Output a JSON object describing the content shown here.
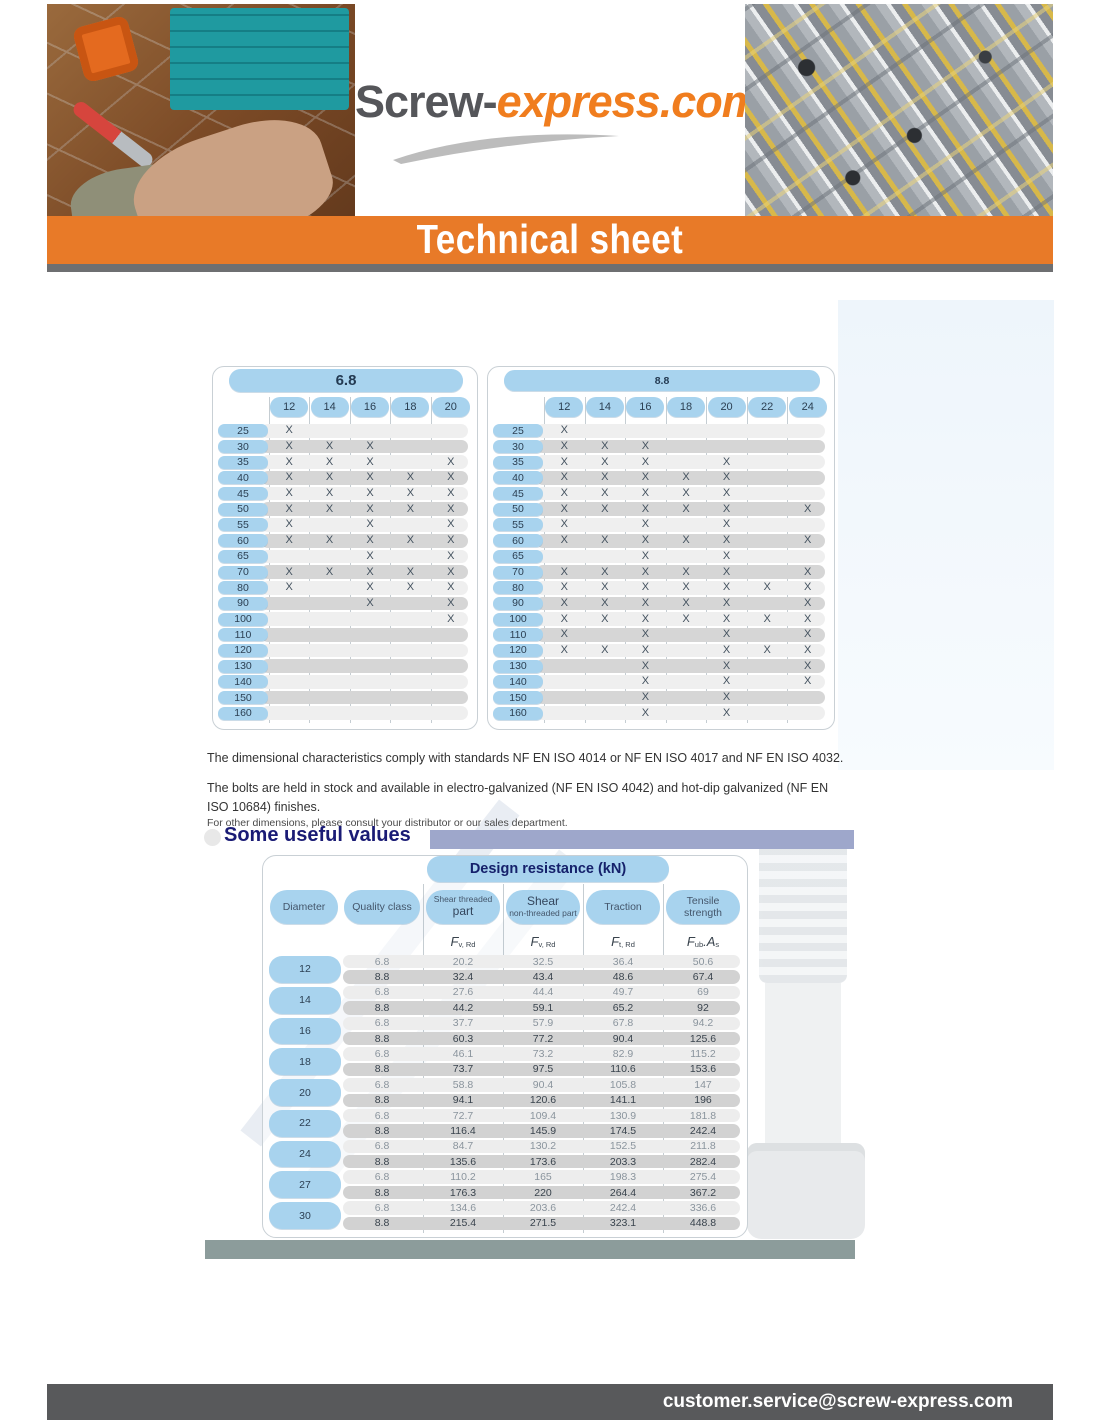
{
  "header": {
    "logo_prefix": "Screw-",
    "logo_suffix": "express.com",
    "banner_title": "Technical sheet"
  },
  "mark_glyph": "X",
  "availability_tables": [
    {
      "title": "6.8",
      "columns": [
        "12",
        "14",
        "16",
        "18",
        "20"
      ],
      "rows": [
        {
          "length": "25",
          "marks": [
            1,
            0,
            0,
            0,
            0
          ]
        },
        {
          "length": "30",
          "marks": [
            1,
            1,
            1,
            0,
            0
          ]
        },
        {
          "length": "35",
          "marks": [
            1,
            1,
            1,
            0,
            1
          ]
        },
        {
          "length": "40",
          "marks": [
            1,
            1,
            1,
            1,
            1
          ]
        },
        {
          "length": "45",
          "marks": [
            1,
            1,
            1,
            1,
            1
          ]
        },
        {
          "length": "50",
          "marks": [
            1,
            1,
            1,
            1,
            1
          ]
        },
        {
          "length": "55",
          "marks": [
            1,
            0,
            1,
            0,
            1
          ]
        },
        {
          "length": "60",
          "marks": [
            1,
            1,
            1,
            1,
            1
          ]
        },
        {
          "length": "65",
          "marks": [
            0,
            0,
            1,
            0,
            1
          ]
        },
        {
          "length": "70",
          "marks": [
            1,
            1,
            1,
            1,
            1
          ]
        },
        {
          "length": "80",
          "marks": [
            1,
            0,
            1,
            1,
            1
          ]
        },
        {
          "length": "90",
          "marks": [
            0,
            0,
            1,
            0,
            1
          ]
        },
        {
          "length": "100",
          "marks": [
            0,
            0,
            0,
            0,
            1
          ]
        },
        {
          "length": "110",
          "marks": [
            0,
            0,
            0,
            0,
            0
          ]
        },
        {
          "length": "120",
          "marks": [
            0,
            0,
            0,
            0,
            0
          ]
        },
        {
          "length": "130",
          "marks": [
            0,
            0,
            0,
            0,
            0
          ]
        },
        {
          "length": "140",
          "marks": [
            0,
            0,
            0,
            0,
            0
          ]
        },
        {
          "length": "150",
          "marks": [
            0,
            0,
            0,
            0,
            0
          ]
        },
        {
          "length": "160",
          "marks": [
            0,
            0,
            0,
            0,
            0
          ]
        }
      ]
    },
    {
      "title": "8.8",
      "columns": [
        "12",
        "14",
        "16",
        "18",
        "20",
        "22",
        "24"
      ],
      "rows": [
        {
          "length": "25",
          "marks": [
            1,
            0,
            0,
            0,
            0,
            0,
            0
          ]
        },
        {
          "length": "30",
          "marks": [
            1,
            1,
            1,
            0,
            0,
            0,
            0
          ]
        },
        {
          "length": "35",
          "marks": [
            1,
            1,
            1,
            0,
            1,
            0,
            0
          ]
        },
        {
          "length": "40",
          "marks": [
            1,
            1,
            1,
            1,
            1,
            0,
            0
          ]
        },
        {
          "length": "45",
          "marks": [
            1,
            1,
            1,
            1,
            1,
            0,
            0
          ]
        },
        {
          "length": "50",
          "marks": [
            1,
            1,
            1,
            1,
            1,
            0,
            1
          ]
        },
        {
          "length": "55",
          "marks": [
            1,
            0,
            1,
            0,
            1,
            0,
            0
          ]
        },
        {
          "length": "60",
          "marks": [
            1,
            1,
            1,
            1,
            1,
            0,
            1
          ]
        },
        {
          "length": "65",
          "marks": [
            0,
            0,
            1,
            0,
            1,
            0,
            0
          ]
        },
        {
          "length": "70",
          "marks": [
            1,
            1,
            1,
            1,
            1,
            0,
            1
          ]
        },
        {
          "length": "80",
          "marks": [
            1,
            1,
            1,
            1,
            1,
            1,
            1
          ]
        },
        {
          "length": "90",
          "marks": [
            1,
            1,
            1,
            1,
            1,
            0,
            1
          ]
        },
        {
          "length": "100",
          "marks": [
            1,
            1,
            1,
            1,
            1,
            1,
            1
          ]
        },
        {
          "length": "110",
          "marks": [
            1,
            0,
            1,
            0,
            1,
            0,
            1
          ]
        },
        {
          "length": "120",
          "marks": [
            1,
            1,
            1,
            0,
            1,
            1,
            1
          ]
        },
        {
          "length": "130",
          "marks": [
            0,
            0,
            1,
            0,
            1,
            0,
            1
          ]
        },
        {
          "length": "140",
          "marks": [
            0,
            0,
            1,
            0,
            1,
            0,
            1
          ]
        },
        {
          "length": "150",
          "marks": [
            0,
            0,
            1,
            0,
            1,
            0,
            0
          ]
        },
        {
          "length": "160",
          "marks": [
            0,
            0,
            1,
            0,
            1,
            0,
            0
          ]
        }
      ]
    }
  ],
  "notes": {
    "standards": "The dimensional characteristics comply with standards NF EN ISO 4014 or NF EN ISO 4017 and NF EN ISO 4032.",
    "stock_line1": "The bolts are held in stock and available in electro-galvanized (NF EN ISO 4042) and hot-dip galvanized (NF EN",
    "stock_line2": "ISO 10684) finishes.",
    "small_print": "For other dimensions, please consult your distributor or our sales department."
  },
  "useful_values": {
    "heading": "Some useful values"
  },
  "design_table": {
    "title": "Design resistance (kN)",
    "headers": {
      "diameter": "Diameter",
      "quality": "Quality class",
      "shear_threaded": [
        "Shear threaded",
        "part"
      ],
      "shear_plain": [
        "Shear",
        "non-threaded part"
      ],
      "traction": "Traction",
      "tensile": [
        "Tensile",
        "strength"
      ]
    },
    "symbols": [
      [
        {
          "t": "F"
        },
        {
          "t": "v, Rd",
          "sub": true
        }
      ],
      [
        {
          "t": "F"
        },
        {
          "t": "v, Rd",
          "sub": true
        }
      ],
      [
        {
          "t": "F"
        },
        {
          "t": "t, Rd",
          "sub": true
        }
      ],
      [
        {
          "t": "F"
        },
        {
          "t": "ub",
          "sub": true
        },
        {
          "t": "."
        },
        {
          "t": "A"
        },
        {
          "t": "s",
          "sub": true
        }
      ]
    ],
    "rows": [
      {
        "diameter": "12",
        "entries": [
          {
            "quality": "6.8",
            "values": [
              "20.2",
              "32.5",
              "36.4",
              "50.6"
            ]
          },
          {
            "quality": "8.8",
            "values": [
              "32.4",
              "43.4",
              "48.6",
              "67.4"
            ]
          }
        ]
      },
      {
        "diameter": "14",
        "entries": [
          {
            "quality": "6.8",
            "values": [
              "27.6",
              "44.4",
              "49.7",
              "69"
            ]
          },
          {
            "quality": "8.8",
            "values": [
              "44.2",
              "59.1",
              "65.2",
              "92"
            ]
          }
        ]
      },
      {
        "diameter": "16",
        "entries": [
          {
            "quality": "6.8",
            "values": [
              "37.7",
              "57.9",
              "67.8",
              "94.2"
            ]
          },
          {
            "quality": "8.8",
            "values": [
              "60.3",
              "77.2",
              "90.4",
              "125.6"
            ]
          }
        ]
      },
      {
        "diameter": "18",
        "entries": [
          {
            "quality": "6.8",
            "values": [
              "46.1",
              "73.2",
              "82.9",
              "115.2"
            ]
          },
          {
            "quality": "8.8",
            "values": [
              "73.7",
              "97.5",
              "110.6",
              "153.6"
            ]
          }
        ]
      },
      {
        "diameter": "20",
        "entries": [
          {
            "quality": "6.8",
            "values": [
              "58.8",
              "90.4",
              "105.8",
              "147"
            ]
          },
          {
            "quality": "8.8",
            "values": [
              "94.1",
              "120.6",
              "141.1",
              "196"
            ]
          }
        ]
      },
      {
        "diameter": "22",
        "entries": [
          {
            "quality": "6.8",
            "values": [
              "72.7",
              "109.4",
              "130.9",
              "181.8"
            ]
          },
          {
            "quality": "8.8",
            "values": [
              "116.4",
              "145.9",
              "174.5",
              "242.4"
            ]
          }
        ]
      },
      {
        "diameter": "24",
        "entries": [
          {
            "quality": "6.8",
            "values": [
              "84.7",
              "130.2",
              "152.5",
              "211.8"
            ]
          },
          {
            "quality": "8.8",
            "values": [
              "135.6",
              "173.6",
              "203.3",
              "282.4"
            ]
          }
        ]
      },
      {
        "diameter": "27",
        "entries": [
          {
            "quality": "6.8",
            "values": [
              "110.2",
              "165",
              "198.3",
              "275.4"
            ]
          },
          {
            "quality": "8.8",
            "values": [
              "176.3",
              "220",
              "264.4",
              "367.2"
            ]
          }
        ]
      },
      {
        "diameter": "30",
        "entries": [
          {
            "quality": "6.8",
            "values": [
              "134.6",
              "203.6",
              "242.4",
              "336.6"
            ]
          },
          {
            "quality": "8.8",
            "values": [
              "215.4",
              "271.5",
              "323.1",
              "448.8"
            ]
          }
        ]
      }
    ]
  },
  "footer": {
    "email": "customer.service@screw-express.com"
  },
  "colors": {
    "accent_orange": "#e87a28",
    "pill_blue": "#a8d3ee",
    "heading_navy": "#1a1b75",
    "footer_gray": "#58595b",
    "bar_blue": "#9ea7cb",
    "bar_green": "#8c9c9b"
  }
}
